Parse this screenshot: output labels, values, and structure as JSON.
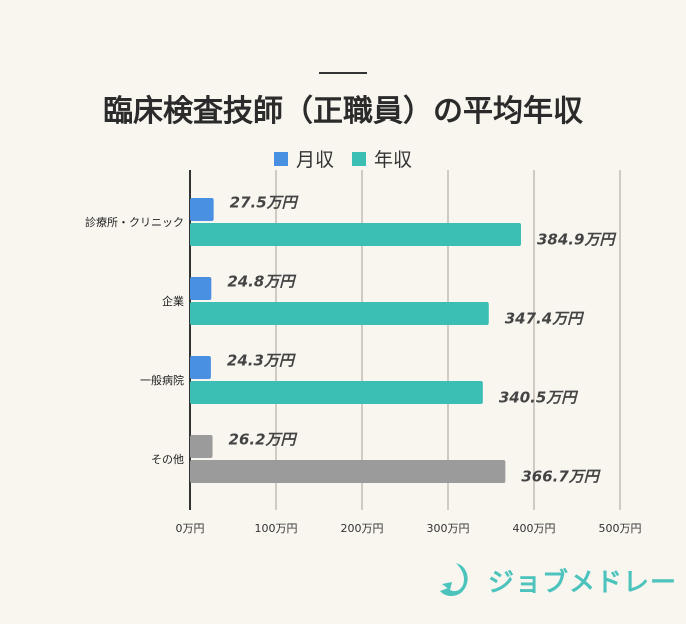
{
  "chart_data": {
    "type": "bar",
    "orientation": "horizontal",
    "title": "臨床検査技師（正職員）の平均年収",
    "categories": [
      "診療所・クリニック",
      "企業",
      "一般病院",
      "その他"
    ],
    "series": [
      {
        "name": "月収",
        "values": [
          27.5,
          24.8,
          24.3,
          26.2
        ],
        "color": "#4a90e2"
      },
      {
        "name": "年収",
        "values": [
          384.9,
          347.4,
          340.5,
          366.7
        ],
        "color": "#3bbfb5"
      }
    ],
    "highlight_other_color": "#9b9b9b",
    "data_labels": [
      [
        "27.5万円",
        "24.8万円",
        "24.3万円",
        "26.2万円"
      ],
      [
        "384.9万円",
        "347.4万円",
        "340.5万円",
        "366.7万円"
      ]
    ],
    "xticks": [
      "0万円",
      "100万円",
      "200万円",
      "300万円",
      "400万円",
      "500万円"
    ],
    "xlim": [
      0,
      500
    ],
    "grid": true,
    "legend": "top-center"
  },
  "brand": {
    "name": "ジョブメドレー",
    "color": "#4cc3bd"
  }
}
